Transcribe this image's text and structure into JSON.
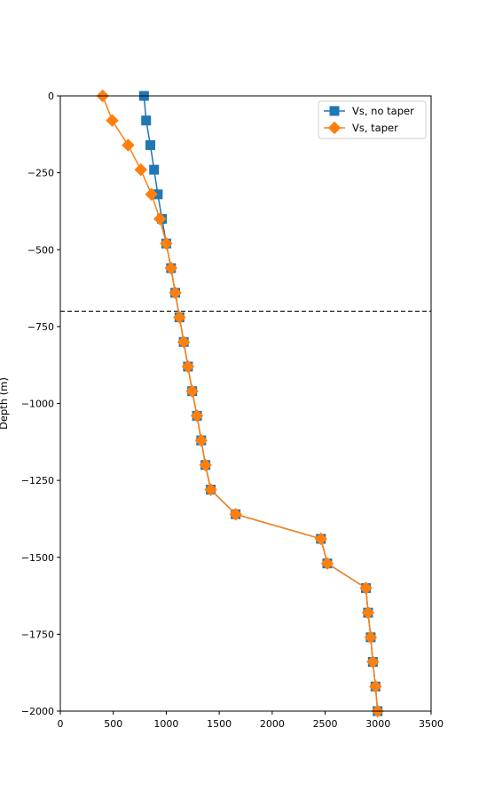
{
  "chart_data": {
    "type": "line",
    "title": "",
    "xlabel": "",
    "ylabel": "Depth (m)",
    "xlim": [
      0,
      3500
    ],
    "ylim": [
      -2000,
      0
    ],
    "xticks": [
      0,
      500,
      1000,
      1500,
      2000,
      2500,
      3000,
      3500
    ],
    "yticks": [
      0,
      -250,
      -500,
      -750,
      -1000,
      -1250,
      -1500,
      -1750,
      -2000
    ],
    "xtick_labels": [
      "0",
      "500",
      "1000",
      "1500",
      "2000",
      "2500",
      "3000",
      "3500"
    ],
    "ytick_labels": [
      "0",
      "−250",
      "−500",
      "−750",
      "−1000",
      "−1250",
      "−1500",
      "−1750",
      "−2000"
    ],
    "grid": false,
    "legend_position": "top-right",
    "hline": {
      "y": -700,
      "style": "dashed",
      "color": "#000000"
    },
    "series": [
      {
        "name": "Vs, no taper",
        "color": "#1f77b4",
        "marker": "square",
        "points": [
          [
            790,
            0
          ],
          [
            810,
            -80
          ],
          [
            850,
            -160
          ],
          [
            885,
            -240
          ],
          [
            920,
            -320
          ],
          [
            960,
            -400
          ],
          [
            1000,
            -480
          ],
          [
            1045,
            -560
          ],
          [
            1085,
            -640
          ],
          [
            1125,
            -720
          ],
          [
            1165,
            -800
          ],
          [
            1205,
            -880
          ],
          [
            1245,
            -960
          ],
          [
            1290,
            -1040
          ],
          [
            1330,
            -1120
          ],
          [
            1370,
            -1200
          ],
          [
            1420,
            -1280
          ],
          [
            1655,
            -1360
          ],
          [
            2460,
            -1440
          ],
          [
            2520,
            -1520
          ],
          [
            2885,
            -1600
          ],
          [
            2905,
            -1680
          ],
          [
            2930,
            -1760
          ],
          [
            2950,
            -1840
          ],
          [
            2975,
            -1920
          ],
          [
            2995,
            -2000
          ]
        ]
      },
      {
        "name": "Vs, taper",
        "color": "#ff7f0e",
        "marker": "diamond",
        "points": [
          [
            400,
            0
          ],
          [
            490,
            -80
          ],
          [
            640,
            -160
          ],
          [
            760,
            -240
          ],
          [
            860,
            -320
          ],
          [
            940,
            -400
          ],
          [
            1000,
            -480
          ],
          [
            1045,
            -560
          ],
          [
            1085,
            -640
          ],
          [
            1125,
            -720
          ],
          [
            1165,
            -800
          ],
          [
            1205,
            -880
          ],
          [
            1245,
            -960
          ],
          [
            1290,
            -1040
          ],
          [
            1330,
            -1120
          ],
          [
            1370,
            -1200
          ],
          [
            1420,
            -1280
          ],
          [
            1655,
            -1360
          ],
          [
            2460,
            -1440
          ],
          [
            2520,
            -1520
          ],
          [
            2885,
            -1600
          ],
          [
            2905,
            -1680
          ],
          [
            2930,
            -1760
          ],
          [
            2950,
            -1840
          ],
          [
            2975,
            -1920
          ],
          [
            2995,
            -2000
          ]
        ]
      }
    ]
  }
}
